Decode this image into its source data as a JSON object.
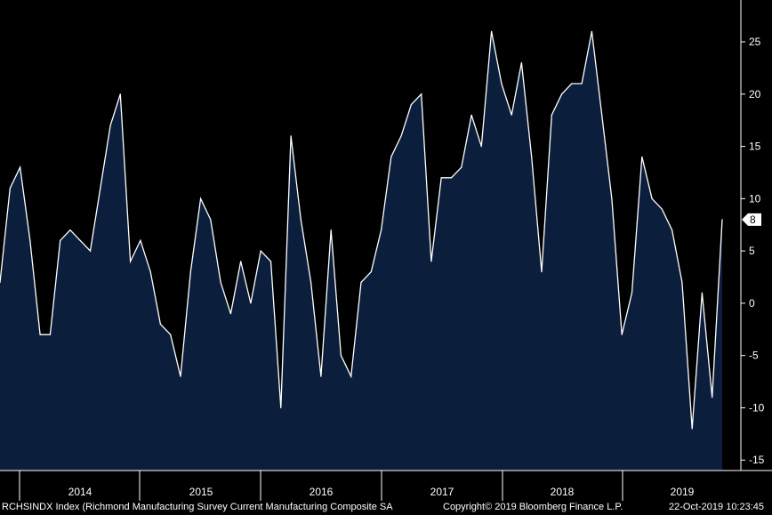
{
  "chart_data": {
    "type": "area",
    "title": "RCHSINDX Index (Richmond Manufacturing Survey Current Manufacturing Composite SA",
    "ylim": [
      -16,
      29
    ],
    "y_ticks": [
      -15,
      -10,
      -5,
      0,
      5,
      10,
      15,
      20,
      25
    ],
    "x_labels": [
      "2014",
      "2015",
      "2016",
      "2017",
      "2018",
      "2019"
    ],
    "grid": false,
    "colors": {
      "background": "#000000",
      "fill": "#0b1f3d",
      "line": "#ffffff"
    },
    "last_value_label": "8",
    "series": [
      {
        "values": [
          2,
          11,
          13,
          6,
          -3,
          -3,
          6,
          7,
          6,
          5,
          11,
          17,
          20,
          4,
          6,
          3,
          -2,
          -3,
          -7,
          3,
          10,
          8,
          2,
          -1,
          4,
          0,
          5,
          4,
          -10,
          16,
          8,
          2,
          -7,
          7,
          -5,
          -7,
          2,
          3,
          7,
          14,
          16,
          19,
          20,
          4,
          12,
          12,
          13,
          18,
          15,
          26,
          21,
          18,
          23,
          14,
          3,
          18,
          20,
          21,
          21,
          26,
          18,
          10,
          -3,
          1,
          14,
          10,
          9,
          7,
          2,
          -12,
          1,
          -9,
          8
        ]
      }
    ]
  },
  "footer": {
    "title": "RCHSINDX Index (Richmond Manufacturing Survey Current Manufacturing Composite SA",
    "copyright": "Copyright© 2019 Bloomberg Finance L.P.",
    "timestamp": "22-Oct-2019 10:23:45"
  }
}
